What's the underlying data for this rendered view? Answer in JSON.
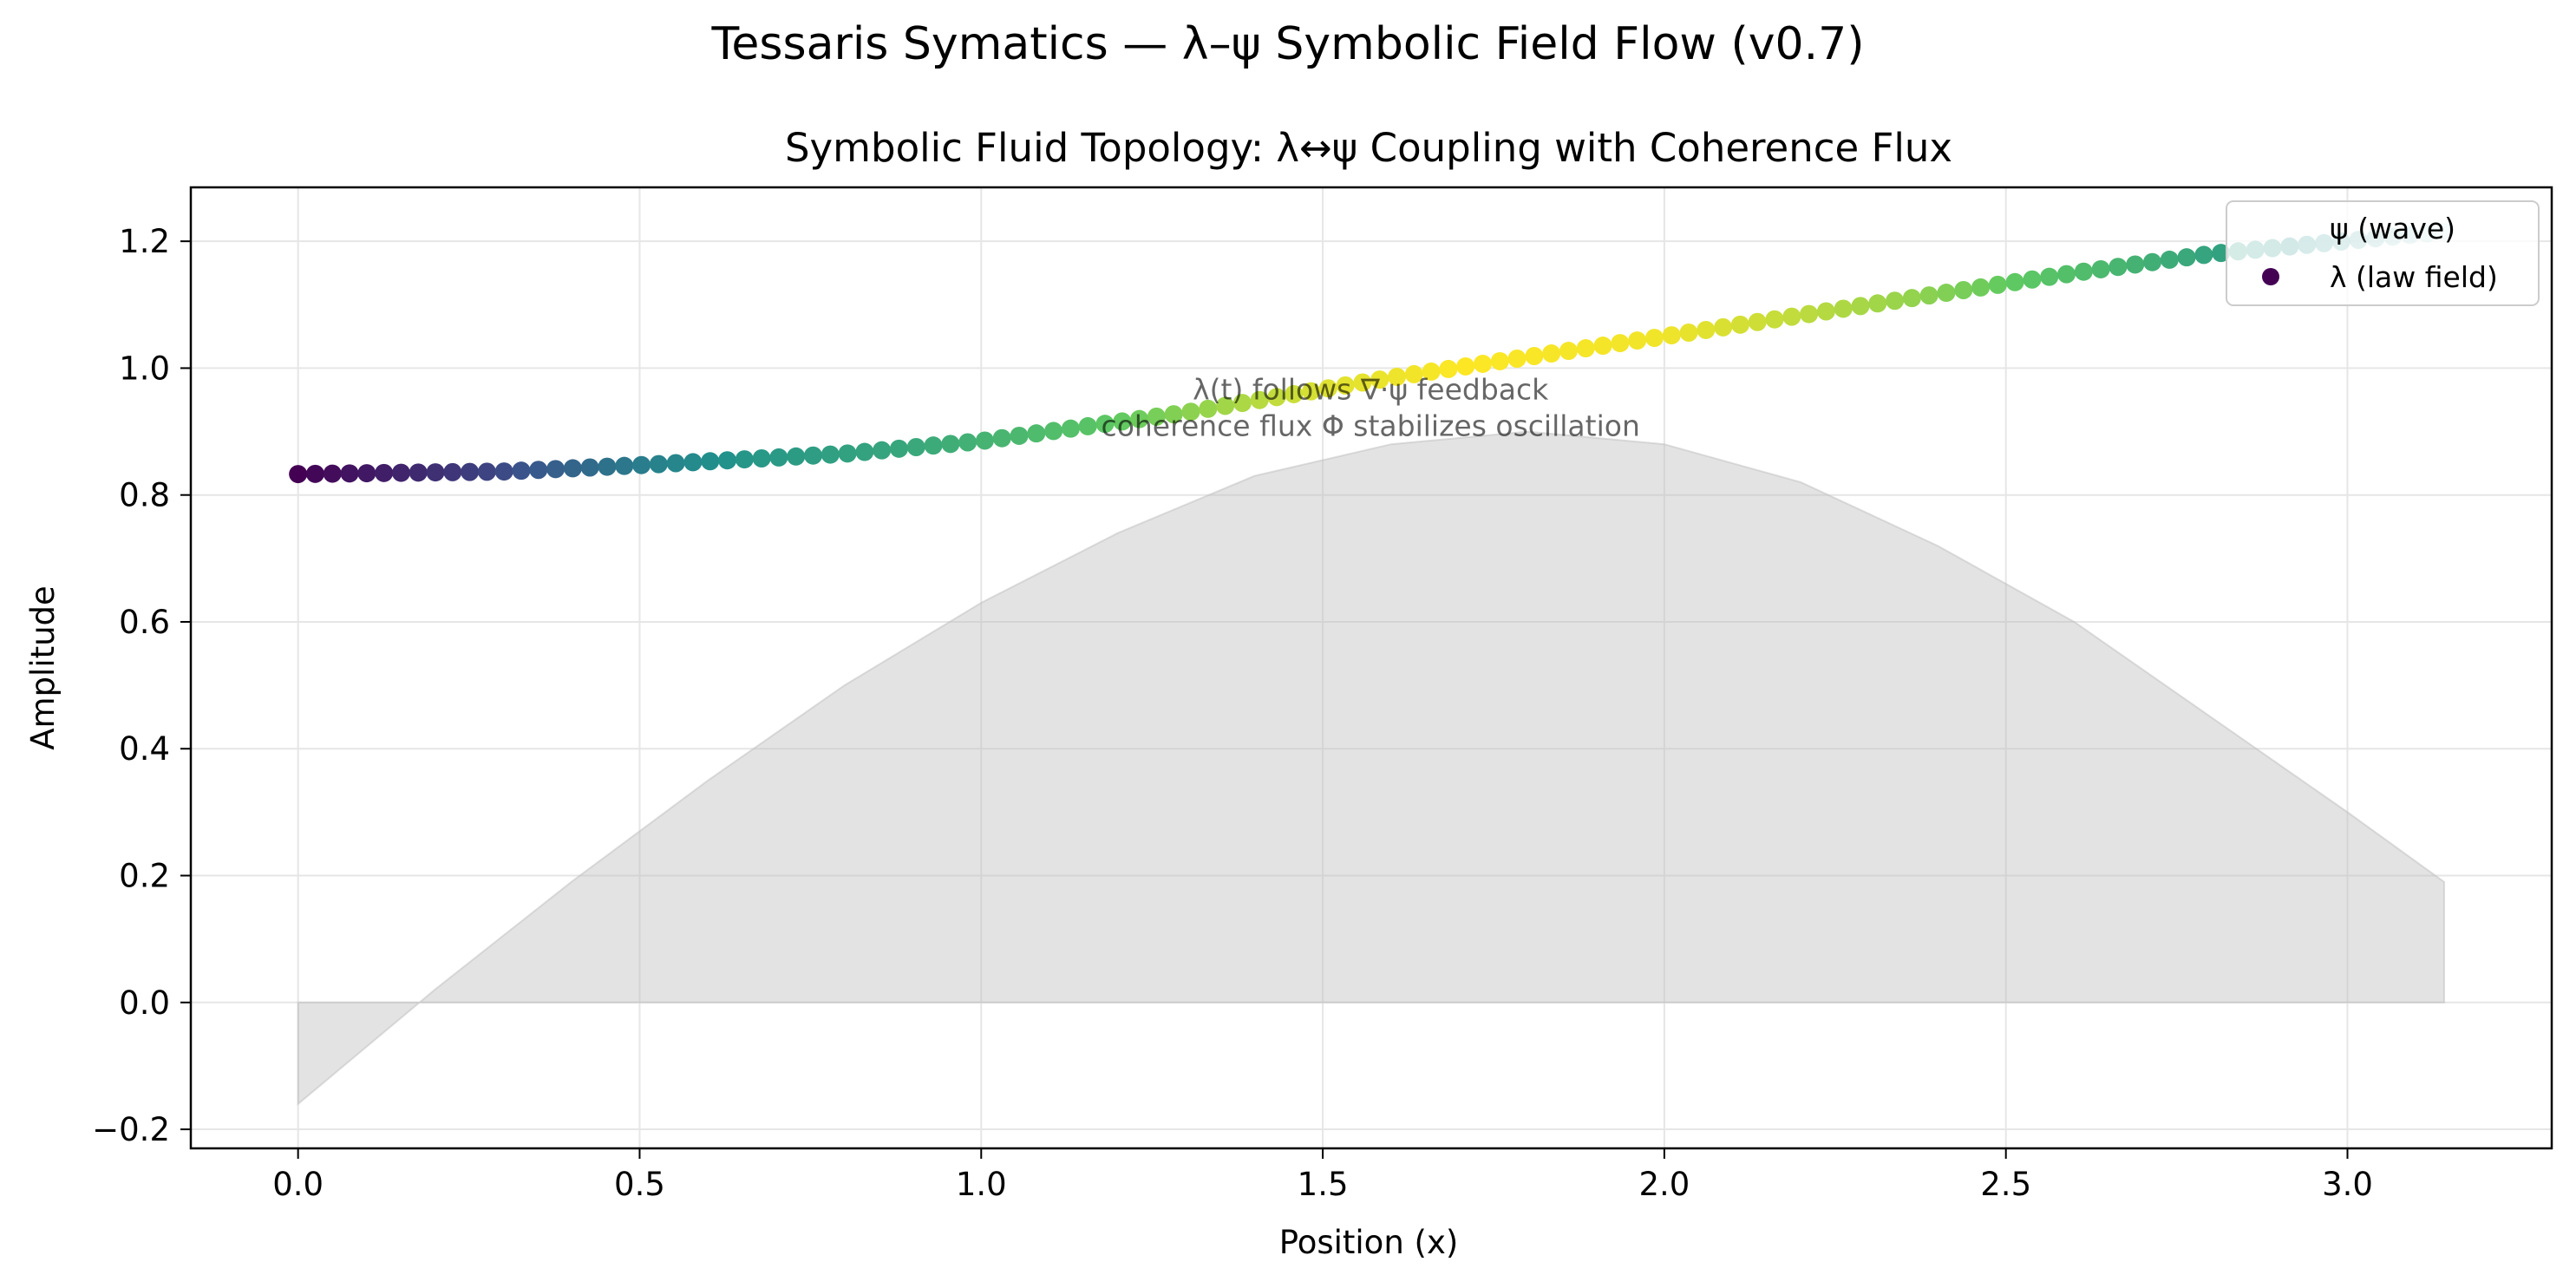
{
  "figure": {
    "suptitle": "Tessaris Symatics — λ–ψ Symbolic Field Flow (v0.7)"
  },
  "chart_data": {
    "type": "scatter",
    "title": "Symbolic Fluid Topology: λ↔ψ Coupling with Coherence Flux",
    "xlabel": "Position (x)",
    "ylabel": "Amplitude",
    "xlim": [
      -0.157,
      3.299
    ],
    "ylim": [
      -0.23,
      1.285
    ],
    "xticks": [
      0.0,
      0.5,
      1.0,
      1.5,
      2.0,
      2.5,
      3.0
    ],
    "xtick_labels": [
      "0.0",
      "0.5",
      "1.0",
      "1.5",
      "2.0",
      "2.5",
      "3.0"
    ],
    "yticks": [
      -0.2,
      0.0,
      0.2,
      0.4,
      0.6,
      0.8,
      1.0,
      1.2
    ],
    "ytick_labels": [
      "−0.2",
      "0.0",
      "0.2",
      "0.4",
      "0.6",
      "0.8",
      "1.0",
      "1.2"
    ],
    "grid": true,
    "legend": {
      "position": "upper right",
      "entries": [
        "ψ (wave)",
        "λ (law field)"
      ]
    },
    "annotation": {
      "lines": [
        "λ(t) follows ∇·ψ feedback",
        "coherence flux Φ stabilizes oscillation"
      ],
      "x": 1.57,
      "y": 0.97
    },
    "series": [
      {
        "name": "ψ (wave)",
        "kind": "filled-area",
        "color": "#bdbdbd",
        "x": [
          0.0,
          0.2,
          0.4,
          0.6,
          0.8,
          1.0,
          1.2,
          1.4,
          1.6,
          1.8,
          2.0,
          2.2,
          2.4,
          2.6,
          2.8,
          3.0,
          3.1416
        ],
        "y": [
          -0.16,
          0.02,
          0.19,
          0.35,
          0.5,
          0.63,
          0.74,
          0.83,
          0.88,
          0.9,
          0.88,
          0.82,
          0.72,
          0.6,
          0.45,
          0.3,
          0.19
        ]
      },
      {
        "name": "λ (law field)",
        "kind": "scatter",
        "colormap": [
          "#440154",
          "#3b528b",
          "#21918c",
          "#5ec962",
          "#fde725"
        ],
        "x_start": 0.0,
        "x_end": 3.1416,
        "points": 126,
        "y_ctrl_x": [
          0.0,
          0.3,
          0.5,
          0.8,
          1.0,
          1.3,
          1.6,
          2.0,
          2.3,
          2.6,
          2.8,
          3.1416
        ],
        "y_ctrl": [
          0.833,
          0.837,
          0.847,
          0.865,
          0.885,
          0.93,
          0.985,
          1.05,
          1.1,
          1.15,
          1.18,
          1.215
        ],
        "c_ctrl_x": [
          0.0,
          0.25,
          0.5,
          0.65,
          0.9,
          1.15,
          1.35,
          1.5,
          1.7,
          2.0,
          2.35,
          2.6,
          2.85,
          2.92,
          3.1416
        ],
        "c_ctrl": [
          0.0,
          0.18,
          0.42,
          0.52,
          0.6,
          0.72,
          0.85,
          0.95,
          1.0,
          0.98,
          0.84,
          0.7,
          0.55,
          0.5,
          0.5
        ]
      }
    ]
  }
}
